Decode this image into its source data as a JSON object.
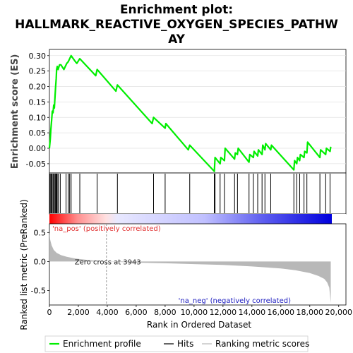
{
  "title_line1": "Enrichment plot:",
  "title_line2": "HALLMARK_REACTIVE_OXYGEN_SPECIES_PATHW",
  "title_line3": "AY",
  "colors": {
    "es_line": "#00ee00",
    "hits": "#000000",
    "metric_fill": "#b8b8b8",
    "pos_red": "#ff0000",
    "neg_blue": "#0000ff"
  },
  "chart_data": [
    {
      "type": "line",
      "ylabel": "Enrichment score (ES)",
      "ylim": [
        -0.08,
        0.32
      ],
      "xlim": [
        0,
        20500
      ],
      "yticks": [
        -0.05,
        0.0,
        0.05,
        0.1,
        0.15,
        0.2,
        0.25,
        0.3
      ],
      "ytick_labels": [
        "-0.05",
        "0.00",
        "0.05",
        "0.10",
        "0.15",
        "0.20",
        "0.25",
        "0.30"
      ],
      "grid": true,
      "series": [
        {
          "name": "Enrichment profile",
          "x": [
            0,
            60,
            100,
            150,
            200,
            250,
            300,
            340,
            390,
            430,
            470,
            500,
            540,
            600,
            700,
            800,
            1000,
            1100,
            1200,
            1300,
            1400,
            1500,
            1800,
            1900,
            2100,
            3200,
            3300,
            4600,
            4700,
            7100,
            7200,
            8000,
            8050,
            9600,
            9700,
            11400,
            11450,
            11800,
            11850,
            12100,
            12150,
            12800,
            12850,
            13000,
            13050,
            13800,
            13850,
            14100,
            14150,
            14400,
            14450,
            14700,
            14750,
            14900,
            14950,
            15300,
            15350,
            16900,
            16950,
            17100,
            17150,
            17300,
            17350,
            17600,
            17650,
            17800,
            17850,
            18700,
            18750,
            19100,
            19150,
            19400,
            19450
          ],
          "y": [
            0.0,
            0.03,
            0.06,
            0.09,
            0.12,
            0.115,
            0.14,
            0.13,
            0.17,
            0.2,
            0.225,
            0.255,
            0.265,
            0.255,
            0.27,
            0.27,
            0.255,
            0.265,
            0.275,
            0.28,
            0.29,
            0.3,
            0.28,
            0.275,
            0.29,
            0.235,
            0.255,
            0.185,
            0.205,
            0.08,
            0.1,
            0.065,
            0.08,
            -0.005,
            0.01,
            -0.075,
            -0.03,
            -0.05,
            -0.03,
            -0.04,
            0.0,
            -0.035,
            -0.015,
            -0.02,
            0.0,
            -0.045,
            -0.02,
            -0.03,
            -0.01,
            -0.025,
            -0.005,
            -0.02,
            0.01,
            -0.005,
            0.015,
            -0.005,
            0.01,
            -0.07,
            -0.04,
            -0.05,
            -0.03,
            -0.04,
            -0.02,
            -0.03,
            -0.01,
            -0.015,
            0.02,
            -0.03,
            -0.005,
            -0.02,
            0.0,
            -0.01,
            0.005
          ]
        }
      ]
    },
    {
      "type": "scatter",
      "name": "Hits",
      "x": [
        30,
        60,
        120,
        180,
        250,
        300,
        380,
        430,
        470,
        500,
        540,
        620,
        750,
        1150,
        1300,
        1400,
        1500,
        2100,
        3300,
        4700,
        7200,
        8000,
        9700,
        11400,
        11450,
        11800,
        12100,
        12800,
        13000,
        13800,
        14100,
        14400,
        14700,
        14900,
        15300,
        16900,
        17100,
        17300,
        17600,
        17800,
        18700,
        19100,
        19400
      ]
    },
    {
      "type": "area",
      "ylabel": "Ranked list metric (PreRanked)",
      "xlabel": "Rank in Ordered Dataset",
      "xlim": [
        0,
        20500
      ],
      "ylim": [
        -0.75,
        0.65
      ],
      "yticks": [
        -0.5,
        0.0,
        0.5
      ],
      "ytick_labels": [
        "-0.5",
        "0.0",
        "0.5"
      ],
      "xticks": [
        0,
        2000,
        4000,
        6000,
        8000,
        10000,
        12000,
        14000,
        16000,
        18000,
        20000
      ],
      "xtick_labels": [
        "0",
        "2,000",
        "4,000",
        "6,000",
        "8,000",
        "10,000",
        "12,000",
        "14,000",
        "16,000",
        "18,000",
        "20,000"
      ],
      "x": [
        0,
        50,
        150,
        300,
        500,
        800,
        1200,
        1800,
        2500,
        3200,
        3943,
        6000,
        8000,
        10000,
        12000,
        14000,
        16000,
        17000,
        18000,
        18600,
        19000,
        19200,
        19350,
        19450
      ],
      "values": [
        0.52,
        0.38,
        0.28,
        0.2,
        0.15,
        0.11,
        0.08,
        0.05,
        0.03,
        0.015,
        0.0,
        -0.02,
        -0.03,
        -0.045,
        -0.06,
        -0.085,
        -0.12,
        -0.15,
        -0.2,
        -0.25,
        -0.3,
        -0.36,
        -0.45,
        -0.72
      ],
      "zero_cross": 3943,
      "annotations": {
        "zero_cross": "Zero cross at 3943",
        "pos": "'na_pos' (positively correlated)",
        "neg": "'na_neg' (negatively correlated)"
      }
    }
  ],
  "legend": {
    "items": [
      {
        "label": "Enrichment profile",
        "color": "#00ee00"
      },
      {
        "label": "Hits",
        "color": "#000000"
      },
      {
        "label": "Ranking metric scores",
        "color": "#b8b8b8"
      }
    ]
  }
}
